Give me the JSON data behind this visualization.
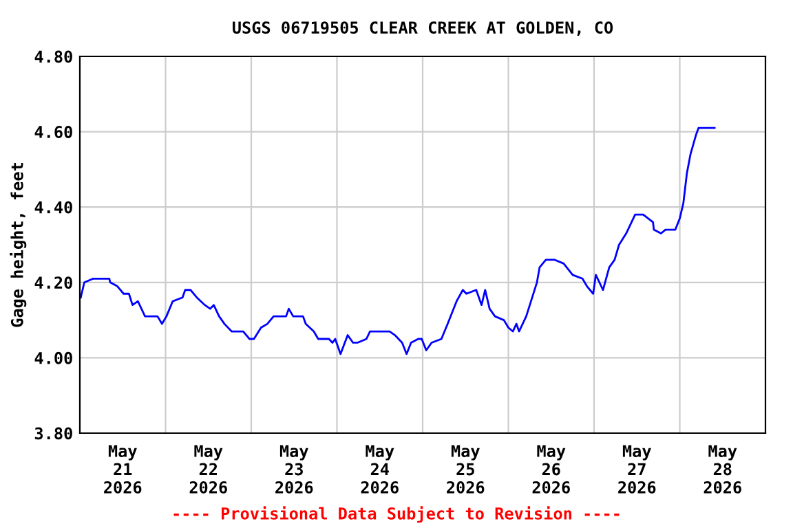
{
  "chart_data": {
    "type": "line",
    "title": "USGS 06719505 CLEAR CREEK AT GOLDEN, CO",
    "ylabel": "Gage height, feet",
    "x": [
      "2026-05-21T00:15",
      "2026-05-21T01:15",
      "2026-05-21T03:45",
      "2026-05-21T08:15",
      "2026-05-21T08:30",
      "2026-05-21T10:30",
      "2026-05-21T12:15",
      "2026-05-21T13:45",
      "2026-05-21T14:45",
      "2026-05-21T16:15",
      "2026-05-21T18:15",
      "2026-05-21T21:45",
      "2026-05-21T23:00",
      "2026-05-22T00:15",
      "2026-05-22T02:00",
      "2026-05-22T04:45",
      "2026-05-22T05:30",
      "2026-05-22T07:00",
      "2026-05-22T08:45",
      "2026-05-22T11:00",
      "2026-05-22T12:30",
      "2026-05-22T13:30",
      "2026-05-22T15:00",
      "2026-05-22T16:30",
      "2026-05-22T18:30",
      "2026-05-22T21:45",
      "2026-05-22T23:30",
      "2026-05-23T00:45",
      "2026-05-23T02:45",
      "2026-05-23T04:30",
      "2026-05-23T06:15",
      "2026-05-23T09:45",
      "2026-05-23T10:30",
      "2026-05-23T11:45",
      "2026-05-23T14:30",
      "2026-05-23T15:15",
      "2026-05-23T17:30",
      "2026-05-23T18:45",
      "2026-05-23T21:45",
      "2026-05-23T22:45",
      "2026-05-23T23:30",
      "2026-05-24T01:00",
      "2026-05-24T03:00",
      "2026-05-24T04:30",
      "2026-05-24T05:45",
      "2026-05-24T08:15",
      "2026-05-24T09:15",
      "2026-05-24T14:45",
      "2026-05-24T16:15",
      "2026-05-24T18:15",
      "2026-05-24T19:30",
      "2026-05-24T20:45",
      "2026-05-24T22:45",
      "2026-05-24T23:45",
      "2026-05-25T01:00",
      "2026-05-25T02:30",
      "2026-05-25T05:15",
      "2026-05-25T07:00",
      "2026-05-25T09:30",
      "2026-05-25T11:15",
      "2026-05-25T12:15",
      "2026-05-25T15:00",
      "2026-05-25T16:30",
      "2026-05-25T17:30",
      "2026-05-25T18:45",
      "2026-05-25T20:15",
      "2026-05-25T22:45",
      "2026-05-26T00:00",
      "2026-05-26T01:15",
      "2026-05-26T02:15",
      "2026-05-26T03:00",
      "2026-05-26T05:00",
      "2026-05-26T08:00",
      "2026-05-26T08:45",
      "2026-05-26T10:30",
      "2026-05-26T13:00",
      "2026-05-26T15:30",
      "2026-05-26T18:00",
      "2026-05-26T20:45",
      "2026-05-26T22:00",
      "2026-05-26T23:45",
      "2026-05-27T00:30",
      "2026-05-27T02:30",
      "2026-05-27T04:15",
      "2026-05-27T05:45",
      "2026-05-27T07:00",
      "2026-05-27T09:00",
      "2026-05-27T11:30",
      "2026-05-27T13:45",
      "2026-05-27T16:30",
      "2026-05-27T16:45",
      "2026-05-27T18:45",
      "2026-05-27T20:00",
      "2026-05-27T22:45",
      "2026-05-28T00:00",
      "2026-05-28T01:00",
      "2026-05-28T02:00",
      "2026-05-28T03:00",
      "2026-05-28T04:30",
      "2026-05-28T05:15",
      "2026-05-28T06:30",
      "2026-05-28T09:45"
    ],
    "series": [
      {
        "color": "#0000ff",
        "values": [
          4.16,
          4.2,
          4.21,
          4.21,
          4.2,
          4.19,
          4.17,
          4.17,
          4.14,
          4.15,
          4.11,
          4.11,
          4.09,
          4.11,
          4.15,
          4.16,
          4.18,
          4.18,
          4.16,
          4.14,
          4.13,
          4.14,
          4.11,
          4.09,
          4.07,
          4.07,
          4.05,
          4.05,
          4.08,
          4.09,
          4.11,
          4.11,
          4.13,
          4.11,
          4.11,
          4.09,
          4.07,
          4.05,
          4.05,
          4.04,
          4.05,
          4.01,
          4.06,
          4.04,
          4.04,
          4.05,
          4.07,
          4.07,
          4.06,
          4.04,
          4.01,
          4.04,
          4.05,
          4.05,
          4.02,
          4.04,
          4.05,
          4.09,
          4.15,
          4.18,
          4.17,
          4.18,
          4.14,
          4.18,
          4.13,
          4.11,
          4.1,
          4.08,
          4.07,
          4.09,
          4.07,
          4.11,
          4.2,
          4.24,
          4.26,
          4.26,
          4.25,
          4.22,
          4.21,
          4.19,
          4.17,
          4.22,
          4.18,
          4.24,
          4.26,
          4.3,
          4.33,
          4.38,
          4.38,
          4.36,
          4.34,
          4.33,
          4.34,
          4.34,
          4.37,
          4.41,
          4.49,
          4.54,
          4.59,
          4.61,
          4.61,
          4.61
        ]
      }
    ],
    "xlim": [
      "2026-05-21",
      "2026-05-29"
    ],
    "xticks": [
      {
        "value": "2026-05-21T12:00",
        "label": "May\n21\n2026"
      },
      {
        "value": "2026-05-22T12:00",
        "label": "May\n22\n2026"
      },
      {
        "value": "2026-05-23T12:00",
        "label": "May\n23\n2026"
      },
      {
        "value": "2026-05-24T12:00",
        "label": "May\n24\n2026"
      },
      {
        "value": "2026-05-25T12:00",
        "label": "May\n25\n2026"
      },
      {
        "value": "2026-05-26T12:00",
        "label": "May\n26\n2026"
      },
      {
        "value": "2026-05-27T12:00",
        "label": "May\n27\n2026"
      },
      {
        "value": "2026-05-28T12:00",
        "label": "May\n28\n2026"
      },
      {
        "value": "2026-05-22",
        "label": null
      },
      {
        "value": "2026-05-23",
        "label": null
      },
      {
        "value": "2026-05-24",
        "label": null
      },
      {
        "value": "2026-05-25",
        "label": null
      },
      {
        "value": "2026-05-26",
        "label": null
      },
      {
        "value": "2026-05-27",
        "label": null
      },
      {
        "value": "2026-05-28",
        "label": null
      }
    ],
    "ylim": [
      3.8,
      4.8
    ],
    "yticks": [
      {
        "value": 3.8,
        "label": "3.80"
      },
      {
        "value": 4.0,
        "label": "4.00"
      },
      {
        "value": 4.2,
        "label": "4.20"
      },
      {
        "value": 4.4,
        "label": "4.40"
      },
      {
        "value": 4.6,
        "label": "4.60"
      },
      {
        "value": 4.8,
        "label": "4.80"
      }
    ],
    "grid": true,
    "legend": false,
    "line_style": "solid",
    "marker": "none",
    "annotations": [
      "---- Provisional Data Subject to Revision ----"
    ]
  }
}
